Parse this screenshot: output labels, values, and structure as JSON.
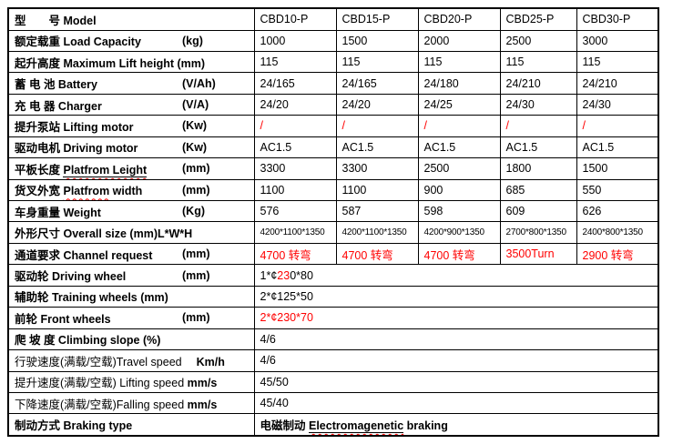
{
  "colors": {
    "text": "#000000",
    "accent_red": "#ff0000",
    "border": "#000000",
    "background": "#ffffff"
  },
  "columns": {
    "label_width": 270,
    "value_widths": [
      90,
      90,
      90,
      84,
      90
    ]
  },
  "chart_data": {
    "type": "table",
    "title": "Electric pallet truck specification table CBD10-P to CBD30-P",
    "models": [
      "CBD10-P",
      "CBD15-P",
      "CBD20-P",
      "CBD25-P",
      "CBD30-P"
    ]
  },
  "rows": [
    {
      "key": "model",
      "vcls": "",
      "label": [
        {
          "t": "型　　号 Model",
          "b": 1
        }
      ],
      "unit": null,
      "span": false,
      "cells": [
        [
          {
            "t": "CBD10-P"
          }
        ],
        [
          {
            "t": "CBD15-P"
          }
        ],
        [
          {
            "t": "CBD20-P"
          }
        ],
        [
          {
            "t": "CBD25-P"
          }
        ],
        [
          {
            "t": "CBD30-P"
          }
        ]
      ]
    },
    {
      "key": "load-capacity",
      "vcls": "",
      "label": [
        {
          "t": "额定载重 Load Capacity",
          "b": 1
        }
      ],
      "unit": {
        "t": "(kg)",
        "tab": 1
      },
      "span": false,
      "cells": [
        [
          {
            "t": "1000"
          }
        ],
        [
          {
            "t": "1500"
          }
        ],
        [
          {
            "t": "2000"
          }
        ],
        [
          {
            "t": "2500"
          }
        ],
        [
          {
            "t": "3000"
          }
        ]
      ]
    },
    {
      "key": "max-lift-height",
      "vcls": "",
      "label": [
        {
          "t": "起升高度 Maximum Lift height (mm)",
          "b": 1
        }
      ],
      "unit": null,
      "span": false,
      "cells": [
        [
          {
            "t": "115"
          }
        ],
        [
          {
            "t": "115"
          }
        ],
        [
          {
            "t": "115"
          }
        ],
        [
          {
            "t": "115"
          }
        ],
        [
          {
            "t": "115"
          }
        ]
      ]
    },
    {
      "key": "battery",
      "vcls": "",
      "label": [
        {
          "t": "蓄 电 池 Battery",
          "b": 1
        }
      ],
      "unit": {
        "t": "(V/Ah)",
        "tab": 1
      },
      "span": false,
      "cells": [
        [
          {
            "t": "24/165"
          }
        ],
        [
          {
            "t": "24/165"
          }
        ],
        [
          {
            "t": "24/180"
          }
        ],
        [
          {
            "t": "24/210"
          }
        ],
        [
          {
            "t": "24/210"
          }
        ]
      ]
    },
    {
      "key": "charger",
      "vcls": "",
      "label": [
        {
          "t": "充 电 器 Charger",
          "b": 1
        }
      ],
      "unit": {
        "t": "(V/A)",
        "tab": 1
      },
      "span": false,
      "cells": [
        [
          {
            "t": "24/20"
          }
        ],
        [
          {
            "t": "24/20"
          }
        ],
        [
          {
            "t": "24/25"
          }
        ],
        [
          {
            "t": "24/30"
          }
        ],
        [
          {
            "t": "24/30"
          }
        ]
      ]
    },
    {
      "key": "lifting-motor",
      "vcls": "",
      "label": [
        {
          "t": "提升泵站 Lifting motor",
          "b": 1
        }
      ],
      "unit": {
        "t": "(Kw)",
        "tab": 1
      },
      "span": false,
      "cells": [
        [
          {
            "t": "/",
            "c": "#ff0000"
          }
        ],
        [
          {
            "t": "/",
            "c": "#ff0000"
          }
        ],
        [
          {
            "t": "/",
            "c": "#ff0000"
          }
        ],
        [
          {
            "t": "/",
            "c": "#ff0000"
          }
        ],
        [
          {
            "t": "/",
            "c": "#ff0000"
          }
        ]
      ]
    },
    {
      "key": "driving-motor",
      "vcls": "",
      "label": [
        {
          "t": "驱动电机 Driving motor",
          "b": 1
        }
      ],
      "unit": {
        "t": "(Kw)",
        "tab": 1
      },
      "span": false,
      "cells": [
        [
          {
            "t": "AC1.5"
          }
        ],
        [
          {
            "t": "AC1.5"
          }
        ],
        [
          {
            "t": "AC1.5"
          }
        ],
        [
          {
            "t": "AC1.5"
          }
        ],
        [
          {
            "t": "AC1.5"
          }
        ]
      ]
    },
    {
      "key": "platform-length",
      "vcls": "",
      "label": [
        {
          "t": "平板长度 ",
          "b": 1
        },
        {
          "t": "Platfrom Leight",
          "b": 1,
          "ul": "solid-wavy"
        }
      ],
      "unit": {
        "t": "(mm)",
        "tab": 1
      },
      "span": false,
      "cells": [
        [
          {
            "t": "3300"
          }
        ],
        [
          {
            "t": "3300"
          }
        ],
        [
          {
            "t": "2500"
          }
        ],
        [
          {
            "t": "1800"
          }
        ],
        [
          {
            "t": "1500"
          }
        ]
      ]
    },
    {
      "key": "platform-width",
      "vcls": "",
      "label": [
        {
          "t": "货叉外宽 ",
          "b": 1
        },
        {
          "t": "Platfrom",
          "b": 1,
          "ul": "wavy"
        },
        {
          "t": " width",
          "b": 1
        }
      ],
      "unit": {
        "t": "(mm)",
        "tab": 1
      },
      "span": false,
      "cells": [
        [
          {
            "t": "1100"
          }
        ],
        [
          {
            "t": "1100"
          }
        ],
        [
          {
            "t": "900"
          }
        ],
        [
          {
            "t": "685"
          }
        ],
        [
          {
            "t": "550"
          }
        ]
      ]
    },
    {
      "key": "weight",
      "vcls": "",
      "label": [
        {
          "t": "车身重量 Weight",
          "b": 1
        }
      ],
      "unit": {
        "t": "(Kg)",
        "tab": 1
      },
      "span": false,
      "cells": [
        [
          {
            "t": "576"
          }
        ],
        [
          {
            "t": "587"
          }
        ],
        [
          {
            "t": "598"
          }
        ],
        [
          {
            "t": "609"
          }
        ],
        [
          {
            "t": "626"
          }
        ]
      ]
    },
    {
      "key": "overall-size",
      "vcls": "small",
      "label": [
        {
          "t": "外形尺寸 Overall size (mm)L*W*H",
          "b": 1
        }
      ],
      "unit": null,
      "span": false,
      "cells": [
        [
          {
            "t": "4200*1100*1350"
          }
        ],
        [
          {
            "t": "4200*1100*1350"
          }
        ],
        [
          {
            "t": "4200*900*1350"
          }
        ],
        [
          {
            "t": "2700*800*1350"
          }
        ],
        [
          {
            "t": "2400*800*1350"
          }
        ]
      ]
    },
    {
      "key": "channel-request",
      "vcls": "redbold",
      "label": [
        {
          "t": "通道要求 Channel request",
          "b": 1
        }
      ],
      "unit": {
        "t": "(mm)",
        "tab": 1
      },
      "span": false,
      "cells": [
        [
          {
            "t": "4700 转弯"
          }
        ],
        [
          {
            "t": "4700 转弯"
          }
        ],
        [
          {
            "t": "4700 转弯"
          }
        ],
        [
          {
            "t": "3500Turn"
          }
        ],
        [
          {
            "t": "2900 转弯"
          }
        ]
      ]
    },
    {
      "key": "driving-wheel",
      "vcls": "",
      "label": [
        {
          "t": "驱动轮  Driving wheel",
          "b": 1
        }
      ],
      "unit": {
        "t": "(mm)",
        "tab": 1
      },
      "span": true,
      "cells": [
        [
          {
            "t": "1*¢"
          },
          {
            "t": "23",
            "c": "#ff0000"
          },
          {
            "t": "0*80"
          }
        ]
      ]
    },
    {
      "key": "training-wheels",
      "vcls": "",
      "label": [
        {
          "t": "辅助轮 Training wheels (mm)",
          "b": 1
        }
      ],
      "unit": null,
      "span": true,
      "cells": [
        [
          {
            "t": "2*¢125*50"
          }
        ]
      ]
    },
    {
      "key": "front-wheels",
      "vcls": "",
      "label": [
        {
          "t": "前轮 Front wheels",
          "b": 1
        }
      ],
      "unit": {
        "t": "(mm)",
        "tab": 1
      },
      "span": true,
      "cells": [
        [
          {
            "t": "2*¢230*70",
            "c": "#ff0000"
          }
        ]
      ]
    },
    {
      "key": "climbing-slope",
      "vcls": "",
      "label": [
        {
          "t": "爬 坡 度 Climbing slope (%)",
          "b": 1
        }
      ],
      "unit": null,
      "span": true,
      "cells": [
        [
          {
            "t": "4/6"
          }
        ]
      ]
    },
    {
      "key": "travel-speed",
      "vcls": "",
      "label": [
        {
          "t": "行驶速度(满载/空载)Travel speed",
          "b": 0
        },
        {
          "t": "Km/h",
          "b": 1,
          "gap": 1
        }
      ],
      "unit": null,
      "span": true,
      "cells": [
        [
          {
            "t": "4/6"
          }
        ]
      ]
    },
    {
      "key": "lifting-speed",
      "vcls": "",
      "label": [
        {
          "t": "提升速度(满载/空载) Lifting speed ",
          "b": 0
        },
        {
          "t": "mm/s",
          "b": 1
        }
      ],
      "unit": null,
      "span": true,
      "cells": [
        [
          {
            "t": " 45/50"
          }
        ]
      ]
    },
    {
      "key": "falling-speed",
      "vcls": "",
      "label": [
        {
          "t": "下降速度(满载/空载)Falling speed ",
          "b": 0
        },
        {
          "t": "mm/s",
          "b": 1
        }
      ],
      "unit": null,
      "span": true,
      "cells": [
        [
          {
            "t": " 45/40"
          }
        ]
      ]
    },
    {
      "key": "braking-type",
      "vcls": "",
      "label": [
        {
          "t": "制动方式 Braking type",
          "b": 1
        }
      ],
      "unit": null,
      "span": true,
      "cells": [
        [
          {
            "t": "电磁制动 ",
            "b": 1
          },
          {
            "t": "Electromagenetic",
            "b": 1,
            "ul": "solid-wavy"
          },
          {
            "t": " braking",
            "b": 1
          }
        ]
      ]
    }
  ]
}
